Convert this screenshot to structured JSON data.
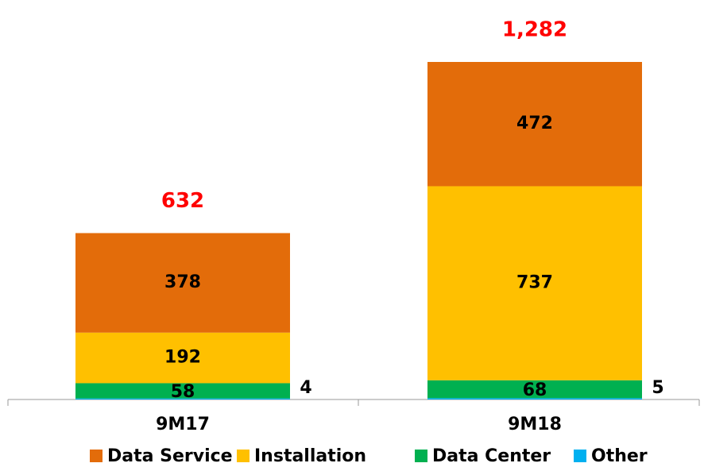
{
  "chart_data": {
    "type": "stacked_bar",
    "categories": [
      "9M17",
      "9M18"
    ],
    "series": [
      {
        "name": "Other",
        "color": "#00b0f0",
        "values": [
          4,
          5
        ]
      },
      {
        "name": "Data Center",
        "color": "#00b050",
        "values": [
          58,
          68
        ]
      },
      {
        "name": "Installation",
        "color": "#ffc000",
        "values": [
          192,
          737
        ]
      },
      {
        "name": "Data Service",
        "color": "#e36c0a",
        "values": [
          378,
          472
        ]
      }
    ],
    "totals": [
      632,
      1282
    ],
    "total_labels": [
      "632",
      "1,282"
    ],
    "legend_order": [
      3,
      2,
      1,
      0
    ]
  }
}
